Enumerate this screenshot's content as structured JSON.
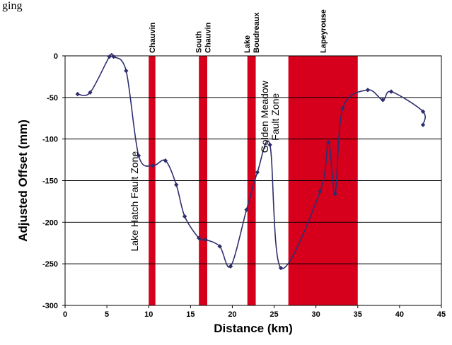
{
  "caption": "ging",
  "chart_data": {
    "type": "line",
    "title": "",
    "xlabel": "Distance (km)",
    "ylabel": "Adjusted Offset (mm)",
    "xlim": [
      0,
      45
    ],
    "ylim": [
      -300,
      0
    ],
    "xticks": [
      0,
      5,
      10,
      15,
      20,
      25,
      30,
      35,
      40,
      45
    ],
    "yticks": [
      0,
      -50,
      -100,
      -150,
      -200,
      -250,
      -300
    ],
    "xtick_labels": [
      "0",
      "5",
      "10",
      "15",
      "20",
      "25",
      "30",
      "35",
      "40",
      "45"
    ],
    "ytick_labels": [
      "0",
      "-50",
      "-100",
      "-150",
      "-200",
      "-250",
      "-300"
    ],
    "grid": "horizontal",
    "zones": [
      {
        "lines": [
          "Chauvin"
        ],
        "x_start": 10.0,
        "x_end": 10.8
      },
      {
        "lines": [
          "South",
          "Chauvin"
        ],
        "x_start": 16.0,
        "x_end": 17.0
      },
      {
        "lines": [
          "Lake",
          "Boudreaux"
        ],
        "x_start": 21.8,
        "x_end": 22.8
      },
      {
        "lines": [
          "Lapeyrouse"
        ],
        "x_start": 26.7,
        "x_end": 35.0
      }
    ],
    "annotations": [
      {
        "lines": [
          "Lake Hatch Fault Zone"
        ],
        "x": 8.3,
        "y": -130
      },
      {
        "lines": [
          "Golden Meadow",
          "Fault Zone"
        ],
        "x": 24.5,
        "y": -75
      }
    ],
    "series": [
      {
        "color": "#2e2e6e",
        "points": [
          [
            1.5,
            -46
          ],
          [
            3.0,
            -44
          ],
          [
            5.3,
            -1
          ],
          [
            5.8,
            -1
          ],
          [
            7.3,
            -18
          ],
          [
            8.8,
            -120
          ],
          [
            10.5,
            -132
          ],
          [
            12.0,
            -126
          ],
          [
            13.3,
            -155
          ],
          [
            14.3,
            -193
          ],
          [
            16.0,
            -219
          ],
          [
            16.8,
            -221
          ],
          [
            18.5,
            -229
          ],
          [
            19.8,
            -253
          ],
          [
            21.7,
            -185
          ],
          [
            23.0,
            -140
          ],
          [
            24.5,
            -107
          ],
          [
            25.8,
            -255
          ],
          [
            30.5,
            -163
          ],
          [
            31.5,
            -104
          ],
          [
            32.3,
            -166
          ],
          [
            33.2,
            -63
          ],
          [
            36.2,
            -41
          ],
          [
            38.0,
            -53
          ],
          [
            39.0,
            -43
          ],
          [
            42.8,
            -67
          ],
          [
            42.8,
            -83
          ]
        ]
      }
    ]
  }
}
